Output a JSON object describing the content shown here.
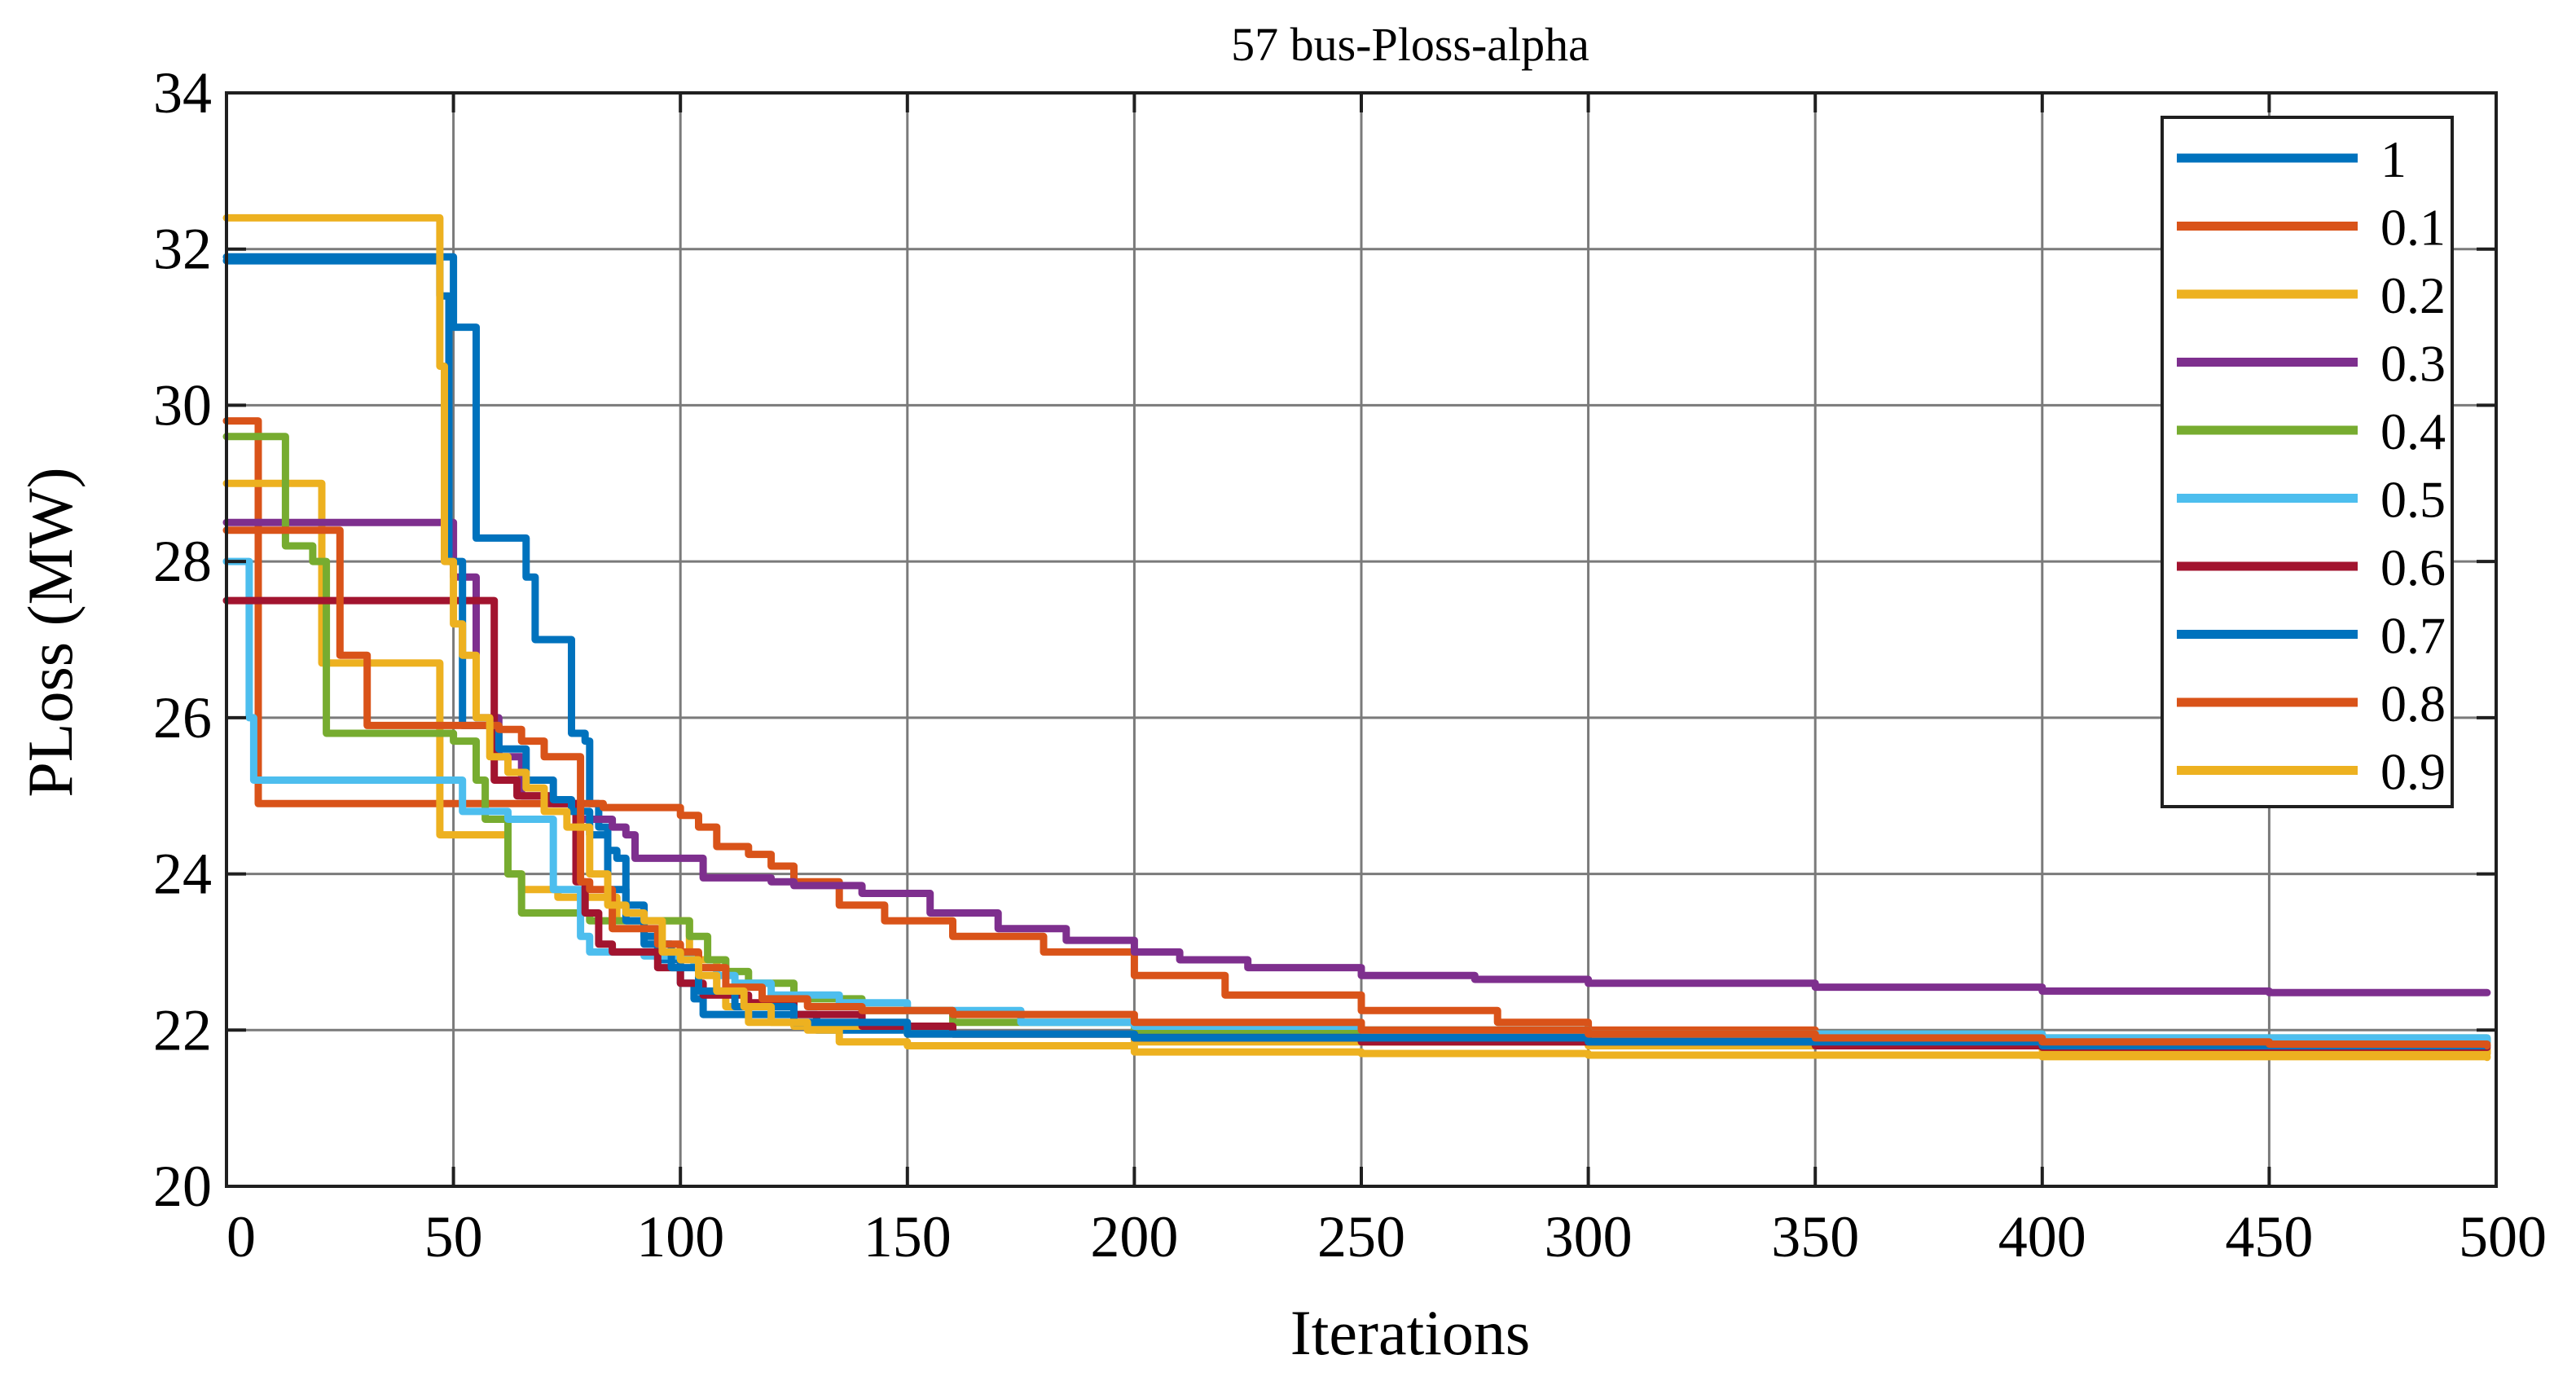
{
  "chart_data": {
    "type": "line",
    "title": "57 bus-Ploss-alpha",
    "xlabel": "Iterations",
    "ylabel": "PLoss (MW)",
    "xlim": [
      0,
      500
    ],
    "ylim": [
      20,
      34
    ],
    "xticks": [
      0,
      50,
      100,
      150,
      200,
      250,
      300,
      350,
      400,
      450,
      500
    ],
    "yticks": [
      20,
      22,
      24,
      26,
      28,
      30,
      32,
      34
    ],
    "xtick_labels": [
      "0",
      "50",
      "100",
      "150",
      "200",
      "250",
      "300",
      "350",
      "400",
      "450",
      "500"
    ],
    "ytick_labels": [
      "20",
      "22",
      "24",
      "26",
      "28",
      "30",
      "32",
      "34"
    ],
    "grid": true,
    "legend_position": "top-right",
    "series": [
      {
        "name": "1",
        "color": "#0072BD",
        "points": [
          [
            0,
            31.9
          ],
          [
            47,
            31.9
          ],
          [
            50,
            31.0
          ],
          [
            54,
            31.0
          ],
          [
            55,
            28.3
          ],
          [
            65,
            28.3
          ],
          [
            66,
            27.8
          ],
          [
            68,
            27.0
          ],
          [
            75,
            27.0
          ],
          [
            76,
            25.8
          ],
          [
            79,
            25.7
          ],
          [
            80,
            24.9
          ],
          [
            82,
            24.6
          ],
          [
            84,
            24.3
          ],
          [
            86,
            24.2
          ],
          [
            88,
            23.6
          ],
          [
            92,
            23.2
          ],
          [
            95,
            22.9
          ],
          [
            100,
            22.6
          ],
          [
            103,
            22.4
          ],
          [
            105,
            22.2
          ],
          [
            110,
            22.2
          ],
          [
            130,
            22.0
          ],
          [
            160,
            21.95
          ],
          [
            200,
            21.92
          ],
          [
            300,
            21.9
          ],
          [
            400,
            21.85
          ],
          [
            498,
            21.85
          ]
        ]
      },
      {
        "name": "0.1",
        "color": "#D95319",
        "points": [
          [
            0,
            29.8
          ],
          [
            5,
            29.8
          ],
          [
            7,
            24.9
          ],
          [
            80,
            24.9
          ],
          [
            83,
            24.85
          ],
          [
            95,
            24.85
          ],
          [
            100,
            24.75
          ],
          [
            104,
            24.6
          ],
          [
            108,
            24.35
          ],
          [
            115,
            24.25
          ],
          [
            120,
            24.1
          ],
          [
            125,
            23.9
          ],
          [
            135,
            23.6
          ],
          [
            145,
            23.4
          ],
          [
            160,
            23.2
          ],
          [
            180,
            23.0
          ],
          [
            200,
            22.7
          ],
          [
            220,
            22.45
          ],
          [
            250,
            22.25
          ],
          [
            280,
            22.1
          ],
          [
            300,
            22.0
          ],
          [
            350,
            21.85
          ],
          [
            400,
            21.8
          ],
          [
            450,
            21.75
          ],
          [
            498,
            21.7
          ]
        ]
      },
      {
        "name": "0.2",
        "color": "#EDB120",
        "points": [
          [
            0,
            29.0
          ],
          [
            20,
            29.0
          ],
          [
            21,
            26.7
          ],
          [
            45,
            26.7
          ],
          [
            47,
            24.5
          ],
          [
            60,
            24.5
          ],
          [
            62,
            24.0
          ],
          [
            65,
            23.8
          ],
          [
            72,
            23.8
          ],
          [
            73,
            23.7
          ],
          [
            85,
            23.7
          ],
          [
            86,
            23.4
          ],
          [
            100,
            23.4
          ],
          [
            102,
            22.9
          ],
          [
            108,
            22.5
          ],
          [
            110,
            22.3
          ],
          [
            115,
            22.1
          ],
          [
            125,
            22.05
          ],
          [
            150,
            21.95
          ],
          [
            200,
            21.85
          ],
          [
            300,
            21.8
          ],
          [
            400,
            21.75
          ],
          [
            498,
            21.7
          ]
        ]
      },
      {
        "name": "0.3",
        "color": "#7E2F8E",
        "points": [
          [
            0,
            28.5
          ],
          [
            48,
            28.5
          ],
          [
            50,
            27.8
          ],
          [
            55,
            26.0
          ],
          [
            60,
            25.5
          ],
          [
            65,
            25.0
          ],
          [
            72,
            24.9
          ],
          [
            78,
            24.7
          ],
          [
            85,
            24.6
          ],
          [
            88,
            24.5
          ],
          [
            90,
            24.2
          ],
          [
            100,
            24.2
          ],
          [
            105,
            23.95
          ],
          [
            120,
            23.9
          ],
          [
            125,
            23.85
          ],
          [
            140,
            23.75
          ],
          [
            155,
            23.5
          ],
          [
            170,
            23.3
          ],
          [
            185,
            23.15
          ],
          [
            200,
            23.0
          ],
          [
            210,
            22.9
          ],
          [
            225,
            22.8
          ],
          [
            250,
            22.7
          ],
          [
            275,
            22.65
          ],
          [
            300,
            22.6
          ],
          [
            350,
            22.55
          ],
          [
            400,
            22.5
          ],
          [
            450,
            22.48
          ],
          [
            498,
            22.48
          ]
        ]
      },
      {
        "name": "0.4",
        "color": "#77AC30",
        "points": [
          [
            0,
            29.6
          ],
          [
            11,
            29.6
          ],
          [
            13,
            28.2
          ],
          [
            17,
            28.2
          ],
          [
            19,
            28.0
          ],
          [
            22,
            25.8
          ],
          [
            48,
            25.8
          ],
          [
            50,
            25.7
          ],
          [
            55,
            25.2
          ],
          [
            57,
            24.7
          ],
          [
            60,
            24.7
          ],
          [
            62,
            24.0
          ],
          [
            65,
            23.5
          ],
          [
            78,
            23.5
          ],
          [
            80,
            23.4
          ],
          [
            100,
            23.4
          ],
          [
            102,
            23.2
          ],
          [
            106,
            22.9
          ],
          [
            110,
            22.75
          ],
          [
            115,
            22.6
          ],
          [
            125,
            22.4
          ],
          [
            140,
            22.25
          ],
          [
            160,
            22.1
          ],
          [
            200,
            22.0
          ],
          [
            300,
            21.95
          ],
          [
            400,
            21.9
          ],
          [
            498,
            21.85
          ]
        ]
      },
      {
        "name": "0.5",
        "color": "#4DBEEE",
        "points": [
          [
            0,
            28.0
          ],
          [
            4,
            28.0
          ],
          [
            5,
            26.0
          ],
          [
            6,
            25.2
          ],
          [
            48,
            25.2
          ],
          [
            52,
            24.8
          ],
          [
            60,
            24.8
          ],
          [
            62,
            24.7
          ],
          [
            68,
            24.7
          ],
          [
            72,
            23.8
          ],
          [
            78,
            23.2
          ],
          [
            80,
            23.0
          ],
          [
            90,
            23.0
          ],
          [
            92,
            22.95
          ],
          [
            100,
            22.95
          ],
          [
            103,
            22.8
          ],
          [
            108,
            22.7
          ],
          [
            112,
            22.6
          ],
          [
            120,
            22.45
          ],
          [
            135,
            22.35
          ],
          [
            150,
            22.25
          ],
          [
            175,
            22.1
          ],
          [
            200,
            22.05
          ],
          [
            250,
            22.0
          ],
          [
            300,
            21.95
          ],
          [
            400,
            21.9
          ],
          [
            498,
            21.85
          ]
        ]
      },
      {
        "name": "0.6",
        "color": "#A2142F",
        "points": [
          [
            0,
            27.5
          ],
          [
            58,
            27.5
          ],
          [
            59,
            25.2
          ],
          [
            62,
            25.2
          ],
          [
            64,
            25.0
          ],
          [
            68,
            25.0
          ],
          [
            71,
            24.9
          ],
          [
            75,
            24.9
          ],
          [
            77,
            23.9
          ],
          [
            79,
            23.5
          ],
          [
            82,
            23.1
          ],
          [
            85,
            23.0
          ],
          [
            92,
            23.0
          ],
          [
            95,
            22.8
          ],
          [
            100,
            22.6
          ],
          [
            105,
            22.45
          ],
          [
            115,
            22.35
          ],
          [
            125,
            22.2
          ],
          [
            140,
            22.05
          ],
          [
            160,
            21.95
          ],
          [
            200,
            21.9
          ],
          [
            250,
            21.85
          ],
          [
            300,
            21.85
          ],
          [
            350,
            21.8
          ],
          [
            400,
            21.78
          ],
          [
            498,
            21.78
          ]
        ]
      },
      {
        "name": "0.7",
        "color": "#0072BD",
        "points": [
          [
            0,
            31.85
          ],
          [
            45,
            31.85
          ],
          [
            47,
            31.4
          ],
          [
            49,
            28.0
          ],
          [
            52,
            25.9
          ],
          [
            60,
            25.6
          ],
          [
            66,
            25.2
          ],
          [
            72,
            24.95
          ],
          [
            76,
            24.8
          ],
          [
            80,
            24.5
          ],
          [
            84,
            23.8
          ],
          [
            88,
            23.4
          ],
          [
            92,
            23.1
          ],
          [
            98,
            22.8
          ],
          [
            104,
            22.5
          ],
          [
            112,
            22.3
          ],
          [
            125,
            22.1
          ],
          [
            150,
            21.95
          ],
          [
            200,
            21.9
          ],
          [
            300,
            21.85
          ],
          [
            400,
            21.8
          ],
          [
            498,
            21.8
          ]
        ]
      },
      {
        "name": "0.8",
        "color": "#D95319",
        "points": [
          [
            0,
            28.4
          ],
          [
            24,
            28.4
          ],
          [
            25,
            26.8
          ],
          [
            30,
            26.8
          ],
          [
            31,
            25.9
          ],
          [
            55,
            25.9
          ],
          [
            60,
            25.85
          ],
          [
            65,
            25.7
          ],
          [
            70,
            25.5
          ],
          [
            76,
            25.5
          ],
          [
            78,
            23.9
          ],
          [
            80,
            23.8
          ],
          [
            85,
            23.3
          ],
          [
            95,
            23.1
          ],
          [
            100,
            23.0
          ],
          [
            104,
            22.8
          ],
          [
            110,
            22.55
          ],
          [
            118,
            22.4
          ],
          [
            128,
            22.3
          ],
          [
            140,
            22.25
          ],
          [
            160,
            22.2
          ],
          [
            200,
            22.1
          ],
          [
            250,
            22.0
          ],
          [
            300,
            21.95
          ],
          [
            350,
            21.9
          ],
          [
            400,
            21.85
          ],
          [
            450,
            21.82
          ],
          [
            498,
            21.8
          ]
        ]
      },
      {
        "name": "0.9",
        "color": "#EDB120",
        "points": [
          [
            0,
            32.4
          ],
          [
            46,
            32.4
          ],
          [
            47,
            30.5
          ],
          [
            48,
            28.0
          ],
          [
            50,
            27.2
          ],
          [
            52,
            26.8
          ],
          [
            55,
            26.0
          ],
          [
            58,
            25.5
          ],
          [
            62,
            25.3
          ],
          [
            66,
            25.1
          ],
          [
            70,
            24.8
          ],
          [
            75,
            24.6
          ],
          [
            80,
            24.0
          ],
          [
            84,
            23.6
          ],
          [
            88,
            23.5
          ],
          [
            92,
            23.4
          ],
          [
            96,
            23.0
          ],
          [
            100,
            22.9
          ],
          [
            104,
            22.7
          ],
          [
            108,
            22.5
          ],
          [
            114,
            22.3
          ],
          [
            120,
            22.1
          ],
          [
            128,
            22.0
          ],
          [
            135,
            21.85
          ],
          [
            150,
            21.8
          ],
          [
            200,
            21.72
          ],
          [
            250,
            21.7
          ],
          [
            300,
            21.68
          ],
          [
            400,
            21.66
          ],
          [
            498,
            21.65
          ]
        ]
      }
    ]
  }
}
